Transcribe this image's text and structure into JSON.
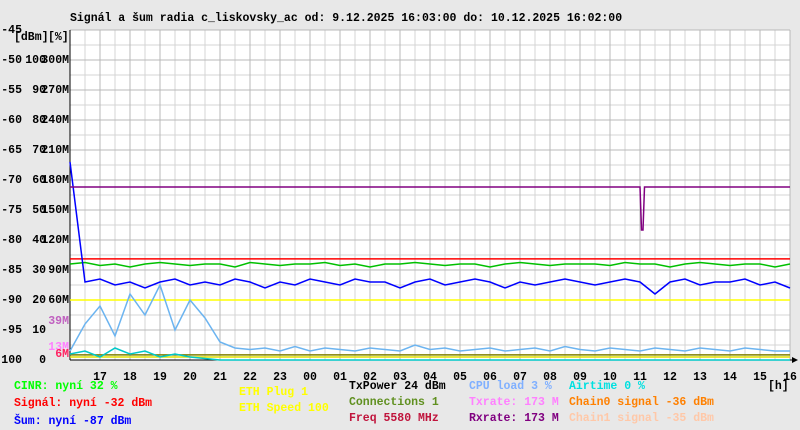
{
  "chart_data": {
    "type": "line",
    "title": "Signál a šum radia c_liskovsky_ac od: 9.12.2025 16:03:00 do: 10.12.2025 16:02:00",
    "axis_units": [
      "[dBm]",
      "[%]"
    ],
    "x_unit": "[h]",
    "grid": true,
    "xlim": [
      0,
      24
    ],
    "xticks": [
      {
        "value": 1,
        "label": "17"
      },
      {
        "value": 2,
        "label": "18"
      },
      {
        "value": 3,
        "label": "19"
      },
      {
        "value": 4,
        "label": "20"
      },
      {
        "value": 5,
        "label": "21"
      },
      {
        "value": 6,
        "label": "22"
      },
      {
        "value": 7,
        "label": "23"
      },
      {
        "value": 8,
        "label": "00"
      },
      {
        "value": 9,
        "label": "01"
      },
      {
        "value": 10,
        "label": "02"
      },
      {
        "value": 11,
        "label": "03"
      },
      {
        "value": 12,
        "label": "04"
      },
      {
        "value": 13,
        "label": "05"
      },
      {
        "value": 14,
        "label": "06"
      },
      {
        "value": 15,
        "label": "07"
      },
      {
        "value": 16,
        "label": "08"
      },
      {
        "value": 17,
        "label": "09"
      },
      {
        "value": 18,
        "label": "10"
      },
      {
        "value": 19,
        "label": "11"
      },
      {
        "value": 20,
        "label": "12"
      },
      {
        "value": 21,
        "label": "13"
      },
      {
        "value": 22,
        "label": "14"
      },
      {
        "value": 23,
        "label": "15"
      },
      {
        "value": 24,
        "label": "16"
      }
    ],
    "axes": {
      "dbm": {
        "ylim": [
          -100,
          -45
        ],
        "yticks": [
          -45,
          -50,
          -55,
          -60,
          -65,
          -70,
          -75,
          -80,
          -85,
          -90,
          -95,
          -100
        ]
      },
      "pct": {
        "ylim": [
          0,
          110
        ],
        "yticks": [
          100,
          90,
          80,
          70,
          60,
          50,
          40,
          30,
          20,
          10,
          0
        ]
      },
      "mbit": {
        "ylim": [
          0,
          330
        ],
        "yticks": [
          {
            "value": 300,
            "label": "300M"
          },
          {
            "value": 270,
            "label": "270M"
          },
          {
            "value": 240,
            "label": "240M"
          },
          {
            "value": 210,
            "label": "210M"
          },
          {
            "value": 180,
            "label": "180M"
          },
          {
            "value": 150,
            "label": "150M"
          },
          {
            "value": 120,
            "label": "120M"
          },
          {
            "value": 90,
            "label": "90M"
          },
          {
            "value": 60,
            "label": "60M"
          }
        ]
      }
    },
    "markers": [
      {
        "value": 39,
        "label": "39M",
        "color": "#c060c0"
      },
      {
        "value": 13,
        "label": "13M",
        "color": "#ff80ff"
      },
      {
        "value": 6,
        "label": "6M",
        "color": "#ff2060"
      }
    ],
    "x": [
      0,
      0.5,
      1,
      1.5,
      2,
      2.5,
      3,
      3.5,
      4,
      4.5,
      5,
      5.5,
      6,
      6.5,
      7,
      7.5,
      8,
      8.5,
      9,
      9.5,
      10,
      10.5,
      11,
      11.5,
      12,
      12.5,
      13,
      13.5,
      14,
      14.5,
      15,
      15.5,
      16,
      16.5,
      17,
      17.5,
      18,
      18.5,
      19,
      19.5,
      20,
      20.5,
      21,
      21.5,
      22,
      22.5,
      23,
      23.5,
      24
    ],
    "series": [
      {
        "color": "#ffff00",
        "axis": "pct",
        "x": [
          0,
          24
        ],
        "values": [
          20,
          20
        ]
      },
      {
        "color": "#808000",
        "axis": "pct",
        "x": [
          0,
          24
        ],
        "values": [
          1.7,
          1.7
        ]
      },
      {
        "color": "#e0e000",
        "axis": "pct",
        "x": [
          0,
          24
        ],
        "values": [
          1,
          1
        ]
      },
      {
        "color": "#6cb4f0",
        "axis": "pct",
        "values": [
          3,
          12,
          18,
          8,
          22,
          15,
          25,
          10,
          20,
          14,
          6,
          4,
          3.5,
          4,
          3,
          4.5,
          3,
          4,
          3.5,
          3,
          4,
          3.5,
          3,
          5,
          3.5,
          4,
          3,
          3.5,
          4,
          3,
          3.5,
          4,
          3,
          4.5,
          3.5,
          3,
          4,
          3.5,
          3,
          4,
          3.5,
          3,
          4,
          3.5,
          3,
          4,
          3.5,
          3,
          3
        ]
      },
      {
        "color": "#00c8c8",
        "axis": "pct",
        "x": [
          0,
          0.5,
          1,
          1.5,
          2,
          2.5,
          3,
          3.5,
          4,
          4.5,
          5,
          24
        ],
        "values": [
          2,
          3,
          1,
          4,
          2,
          3,
          1,
          2,
          1,
          0.5,
          0,
          0
        ]
      },
      {
        "color": "#ff0000",
        "axis": "pct",
        "x": [
          0,
          24
        ],
        "values": [
          33.7,
          33.7
        ]
      },
      {
        "color": "#00c000",
        "axis": "pct",
        "values": [
          32,
          32.5,
          31.5,
          32,
          31,
          32,
          32.5,
          32,
          31.5,
          32,
          32,
          31,
          32.5,
          32,
          31.5,
          32,
          32,
          32.5,
          31.5,
          32,
          31,
          32,
          32,
          32.5,
          32,
          31.5,
          32,
          32,
          31,
          32,
          32.5,
          32,
          31.5,
          32,
          32,
          32,
          31.5,
          32.5,
          32,
          32,
          31,
          32,
          32.5,
          32,
          31.5,
          32,
          32,
          31,
          32
        ]
      },
      {
        "color": "#0000ff",
        "axis": "dbm",
        "values": [
          -67,
          -87,
          -86.5,
          -87.5,
          -87,
          -88,
          -87,
          -86.5,
          -87.5,
          -87,
          -87.5,
          -86.5,
          -87,
          -88,
          -87,
          -87.5,
          -86.5,
          -87,
          -87.5,
          -86.5,
          -87,
          -87,
          -88,
          -87,
          -86.5,
          -87.5,
          -87,
          -86.5,
          -87,
          -88,
          -87,
          -87.5,
          -87,
          -86.5,
          -87,
          -87.5,
          -87,
          -86.5,
          -87,
          -89,
          -87,
          -86.5,
          -87.5,
          -87,
          -87,
          -86.5,
          -87.5,
          -87,
          -88
        ]
      },
      {
        "color": "#800080",
        "axis": "mbit",
        "x": [
          0,
          19,
          19.05,
          19.1,
          19.15,
          24
        ],
        "values": [
          173,
          173,
          130,
          130,
          173,
          173
        ]
      }
    ],
    "legend": [
      {
        "text": "CINR: nyní 32 %",
        "color": "#00ff00"
      },
      {
        "text": "Signál: nyní -32 dBm",
        "color": "#ff0000"
      },
      {
        "text": "Šum: nyní -87 dBm",
        "color": "#0000ff"
      },
      {
        "text": "ETH Plug 1",
        "color": "#ffff00"
      },
      {
        "text": "ETH Speed 100",
        "color": "#ffff00"
      },
      {
        "text": "TxPower 24 dBm",
        "color": "#000000"
      },
      {
        "text": "Connections 1",
        "color": "#609020"
      },
      {
        "text": "Freq 5580 MHz",
        "color": "#c0143c"
      },
      {
        "text": "CPU load 3 %",
        "color": "#80b0ff"
      },
      {
        "text": "Txrate: 173 M",
        "color": "#ff80ff"
      },
      {
        "text": "Rxrate: 173 M",
        "color": "#800080"
      },
      {
        "text": "Airtime 0 %",
        "color": "#00e0e0"
      },
      {
        "text": "Chain0 signal -36 dBm",
        "color": "#ff8000"
      },
      {
        "text": "Chain1 signal -35 dBm",
        "color": "#ffc8a8"
      }
    ]
  }
}
